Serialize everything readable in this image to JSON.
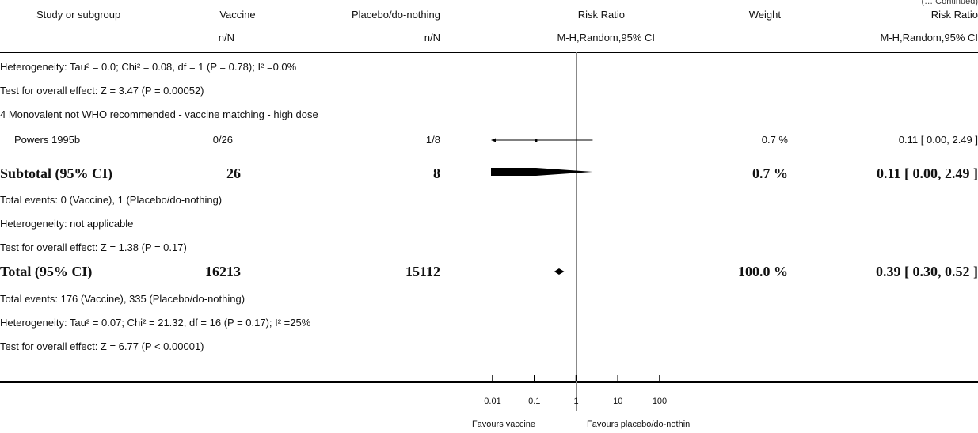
{
  "header": {
    "continued": "(… Continued)",
    "col_study": "Study or subgroup",
    "col_vaccine": "Vaccine",
    "col_placebo": "Placebo/do-nothing",
    "col_rr": "Risk Ratio",
    "col_weight": "Weight",
    "col_rr2": "Risk Ratio",
    "sub_vaccine": "n/N",
    "sub_placebo": "n/N",
    "sub_rr": "M-H,Random,95% CI",
    "sub_rr2": "M-H,Random,95% CI"
  },
  "rows": {
    "het1": "Heterogeneity: Tau² = 0.0; Chi² = 0.08, df = 1 (P = 0.78); I² =0.0%",
    "test1": "Test for overall effect: Z = 3.47 (P = 0.00052)",
    "group4": "4 Monovalent not WHO recommended - vaccine matching - high dose",
    "study_name": "Powers 1995b",
    "study_vaccine": "0/26",
    "study_placebo": "1/8",
    "study_weight": "0.7 %",
    "study_ci": "0.11 [ 0.00, 2.49 ]",
    "subtotal_label": "Subtotal (95% CI)",
    "subtotal_vaccine": "26",
    "subtotal_placebo": "8",
    "subtotal_weight": "0.7 %",
    "subtotal_ci": "0.11 [ 0.00, 2.49 ]",
    "events4": "Total events: 0 (Vaccine), 1 (Placebo/do-nothing)",
    "het4": "Heterogeneity: not applicable",
    "test4": "Test for overall effect: Z = 1.38 (P = 0.17)",
    "total_label": "Total (95% CI)",
    "total_vaccine": "16213",
    "total_placebo": "15112",
    "total_weight": "100.0 %",
    "total_ci": "0.39 [ 0.30, 0.52 ]",
    "events_total": "Total events: 176 (Vaccine), 335 (Placebo/do-nothing)",
    "het_total": "Heterogeneity: Tau² = 0.07; Chi² = 21.32, df = 16 (P = 0.17); I² =25%",
    "test_total": "Test for overall effect: Z = 6.77 (P < 0.00001)"
  },
  "axis": {
    "favours_left": "Favours vaccine",
    "favours_right": "Favours placebo/do-nothin"
  },
  "chart_data": {
    "type": "forest",
    "scale": "log",
    "xlim": [
      0.01,
      100
    ],
    "ticks": [
      {
        "value": 0.01,
        "label": "0.01"
      },
      {
        "value": 0.1,
        "label": "0.1"
      },
      {
        "value": 1,
        "label": "1"
      },
      {
        "value": 10,
        "label": "10"
      },
      {
        "value": 100,
        "label": "100"
      }
    ],
    "null_value": 1,
    "study": {
      "name": "Powers 1995b",
      "rr": 0.11,
      "lower": 0.001,
      "upper": 2.49,
      "lower_arrow": true
    },
    "subtotal_diamond": {
      "rr": 0.11,
      "lower": 0.001,
      "upper": 2.49
    },
    "total_diamond": {
      "rr": 0.39,
      "lower": 0.3,
      "upper": 0.52
    }
  }
}
